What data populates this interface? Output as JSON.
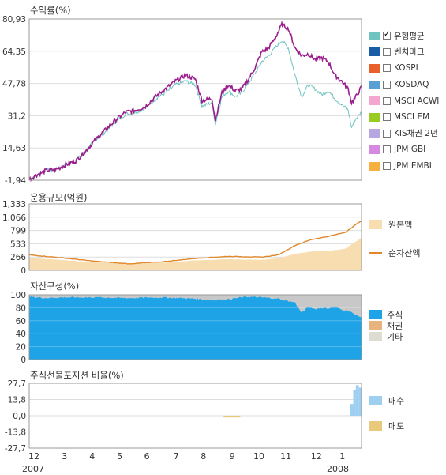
{
  "colors": {
    "fund_line": "#9b1e8c",
    "benchmark_line": "#6fc3c0",
    "net_asset": "#e0882a",
    "principal": "#f7ddb0",
    "stock": "#1ea3e6",
    "bond": "#e9b380",
    "other": "#c8c8c8",
    "buy": "#9ecff0",
    "sell": "#e9c97c",
    "grid": "#dddddd",
    "border": "#9a9a9a"
  },
  "time_axis": {
    "months": [
      "12",
      "3",
      "4",
      "5",
      "6",
      "7",
      "8",
      "9",
      "10",
      "11",
      "12",
      "1"
    ],
    "years": [
      "2007",
      "2008"
    ]
  },
  "chart_data": [
    {
      "type": "line",
      "title": "수익률(%)",
      "ylim": [
        -1.94,
        80.93
      ],
      "yticks": [
        "80,93",
        "64,35",
        "47,78",
        "31,2",
        "14,63",
        "-1,94"
      ],
      "series": [
        {
          "name": "유형평균",
          "key": "fund",
          "x": [
            0,
            0.02,
            0.05,
            0.08,
            0.11,
            0.14,
            0.17,
            0.2,
            0.23,
            0.26,
            0.29,
            0.32,
            0.35,
            0.38,
            0.41,
            0.44,
            0.47,
            0.5,
            0.52,
            0.55,
            0.56,
            0.58,
            0.6,
            0.62,
            0.64,
            0.66,
            0.68,
            0.7,
            0.72,
            0.74,
            0.76,
            0.78,
            0.8,
            0.82,
            0.84,
            0.86,
            0.88,
            0.9,
            0.92,
            0.94,
            0.96,
            0.97,
            0.98,
            1.0
          ],
          "values": [
            -1.5,
            0.5,
            3,
            3.5,
            6,
            8,
            13,
            19,
            24,
            29,
            33,
            34,
            36,
            41,
            45,
            49,
            52,
            50,
            39,
            40,
            29,
            43,
            47,
            44,
            45,
            50,
            56,
            64,
            66,
            71,
            78,
            76,
            66,
            62,
            63,
            60,
            61,
            59,
            52,
            49,
            45,
            38,
            40,
            46
          ]
        },
        {
          "name": "KOSPI",
          "key": "benchmark",
          "x": [
            0,
            0.02,
            0.05,
            0.08,
            0.11,
            0.14,
            0.17,
            0.2,
            0.23,
            0.26,
            0.29,
            0.32,
            0.35,
            0.38,
            0.41,
            0.44,
            0.47,
            0.5,
            0.52,
            0.55,
            0.56,
            0.58,
            0.6,
            0.62,
            0.64,
            0.66,
            0.68,
            0.7,
            0.72,
            0.74,
            0.76,
            0.78,
            0.8,
            0.82,
            0.84,
            0.86,
            0.88,
            0.9,
            0.92,
            0.94,
            0.96,
            0.97,
            0.98,
            1.0
          ],
          "values": [
            -1.5,
            0.5,
            3,
            3.5,
            6,
            8,
            13,
            19,
            23,
            28,
            32,
            33,
            35,
            40,
            43,
            47,
            49,
            47,
            36,
            38,
            27,
            41,
            44,
            41,
            43,
            48,
            53,
            59,
            62,
            66,
            70,
            66,
            52,
            41,
            47,
            45,
            42,
            44,
            40,
            37,
            34,
            25,
            29,
            33
          ]
        }
      ],
      "legend": [
        {
          "label": "유형평균",
          "color": "#6fc3c0",
          "checked": true
        },
        {
          "label": "벤치마크",
          "color": "#1a5ca8",
          "checked": false
        },
        {
          "label": "KOSPI",
          "color": "#e8602c",
          "checked": false
        },
        {
          "label": "KOSDAQ",
          "color": "#5a9fd4",
          "checked": false
        },
        {
          "label": "MSCI ACWI",
          "color": "#f4a6d0",
          "checked": false
        },
        {
          "label": "MSCI EM",
          "color": "#99cc22",
          "checked": false
        },
        {
          "label": "KIS채권 2년",
          "color": "#b7a7e0",
          "checked": false
        },
        {
          "label": "JPM GBI",
          "color": "#d58ae0",
          "checked": false
        },
        {
          "label": "JPM EMBI",
          "color": "#f6b040",
          "checked": false
        }
      ],
      "legend_placement": "right"
    },
    {
      "type": "area",
      "title": "운용규모(억원)",
      "ylim": [
        0,
        1333
      ],
      "yticks": [
        "1,333",
        "1,066",
        "799",
        "533",
        "266",
        "0"
      ],
      "series": [
        {
          "name": "원본액",
          "key": "principal",
          "x": [
            0,
            0.1,
            0.2,
            0.3,
            0.4,
            0.5,
            0.6,
            0.7,
            0.75,
            0.8,
            0.85,
            0.9,
            0.95,
            1.0
          ],
          "values": [
            250,
            205,
            160,
            125,
            150,
            200,
            220,
            210,
            240,
            330,
            380,
            390,
            430,
            650
          ]
        },
        {
          "name": "순자산액",
          "key": "net",
          "x": [
            0,
            0.1,
            0.2,
            0.3,
            0.4,
            0.5,
            0.6,
            0.7,
            0.75,
            0.8,
            0.85,
            0.9,
            0.95,
            1.0
          ],
          "values": [
            310,
            250,
            180,
            130,
            170,
            240,
            280,
            265,
            310,
            500,
            620,
            680,
            760,
            1000
          ]
        }
      ],
      "legend": [
        "원본액",
        "순자산액"
      ],
      "legend_placement": "right"
    },
    {
      "type": "area",
      "title": "자산구성(%)",
      "ylim": [
        0,
        100
      ],
      "yticks": [
        "100",
        "80",
        "60",
        "40",
        "20",
        "0"
      ],
      "series": [
        {
          "name": "주식",
          "key": "stock",
          "x": [
            0,
            0.05,
            0.1,
            0.2,
            0.3,
            0.4,
            0.5,
            0.55,
            0.6,
            0.65,
            0.7,
            0.75,
            0.8,
            0.82,
            0.84,
            0.86,
            0.88,
            0.9,
            0.92,
            0.94,
            0.96,
            0.98,
            1.0
          ],
          "values": [
            97,
            95,
            96,
            96,
            95,
            96,
            94,
            92,
            93,
            97,
            96,
            94,
            88,
            72,
            82,
            78,
            80,
            79,
            82,
            77,
            75,
            70,
            65
          ]
        },
        {
          "name": "채권",
          "key": "bond",
          "x": [
            0,
            1.0
          ],
          "values": [
            0,
            0
          ]
        },
        {
          "name": "기타",
          "key": "other",
          "x": [
            0,
            1.0
          ],
          "values": [
            100,
            100
          ]
        }
      ],
      "legend": [
        "주식",
        "채권",
        "기타"
      ],
      "legend_placement": "right"
    },
    {
      "type": "bar",
      "title": "주식선물포지션 비율(%)",
      "ylim": [
        -27.7,
        27.7
      ],
      "yticks": [
        "27,7",
        "13,8",
        "0,0",
        "-13,8",
        "-27,7"
      ],
      "series": [
        {
          "name": "매수",
          "key": "buy",
          "bars": [
            {
              "x0": 0.965,
              "x1": 0.975,
              "value": 10
            },
            {
              "x0": 0.975,
              "x1": 0.983,
              "value": 22
            },
            {
              "x0": 0.983,
              "x1": 0.992,
              "value": 26
            },
            {
              "x0": 0.992,
              "x1": 1.0,
              "value": 24
            }
          ]
        },
        {
          "name": "매도",
          "key": "sell",
          "bars": [
            {
              "x0": 0.585,
              "x1": 0.635,
              "value": -1.5
            }
          ]
        }
      ],
      "legend": [
        "매수",
        "매도"
      ],
      "legend_placement": "right"
    }
  ]
}
